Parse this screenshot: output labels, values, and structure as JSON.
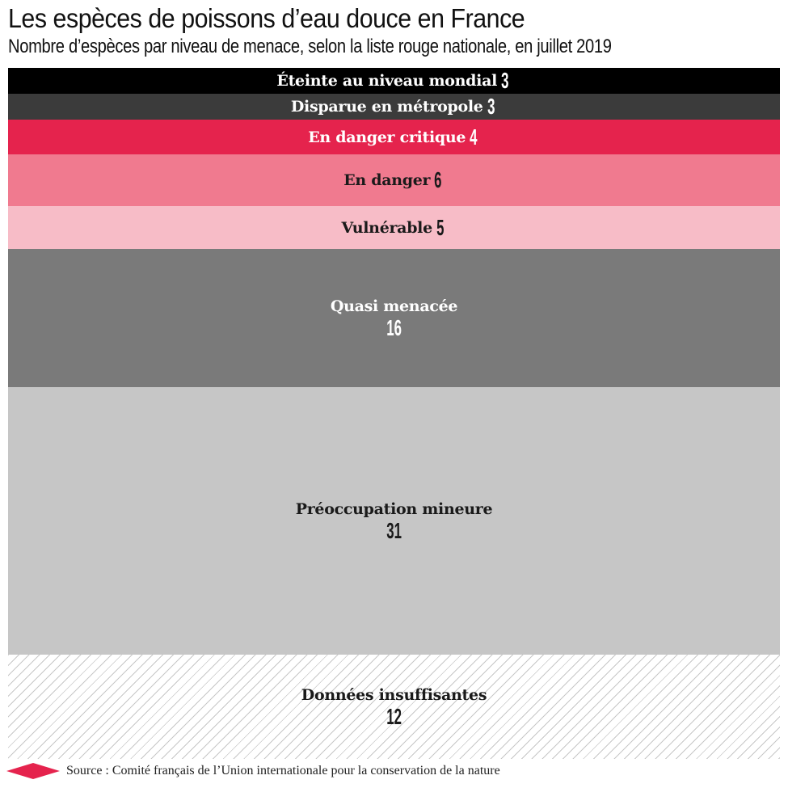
{
  "title": "Les espèces de poissons d’eau douce en France",
  "subtitle": "Nombre d’espèces par niveau de menace, selon la liste rouge nationale, en juillet 2019",
  "source": "Source : Comité français de l’Union internationale pour la conservation de la nature",
  "colors": {
    "brand_accent": "#e5234d"
  },
  "chart_data": {
    "type": "bar",
    "orientation": "stacked-vertical",
    "title": "Les espèces de poissons d’eau douce en France",
    "subtitle": "Nombre d’espèces par niveau de menace, selon la liste rouge nationale, en juillet 2019",
    "categories": [
      "Éteinte au niveau mondial",
      "Disparue en métropole",
      "En danger critique",
      "En danger",
      "Vulnérable",
      "Quasi menacée",
      "Préoccupation mineure",
      "Données insuffisantes"
    ],
    "values": [
      3,
      3,
      4,
      6,
      5,
      16,
      31,
      12
    ],
    "colors": [
      "#000000",
      "#3b3b3b",
      "#e5234d",
      "#f07a8f",
      "#f7bcc7",
      "#7a7a7a",
      "#c6c6c6",
      "hatched"
    ],
    "text_colors": [
      "#ffffff",
      "#ffffff",
      "#ffffff",
      "#1a1a1a",
      "#1a1a1a",
      "#ffffff",
      "#1a1a1a",
      "#1a1a1a"
    ],
    "grid": false,
    "legend": "none"
  }
}
